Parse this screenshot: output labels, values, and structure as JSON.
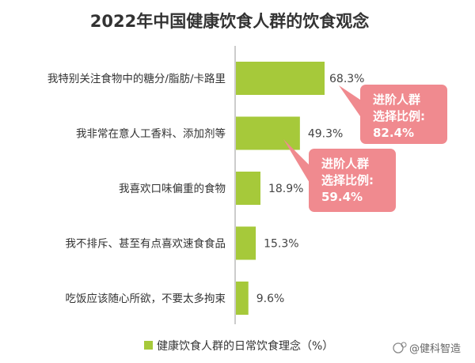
{
  "chart_data": {
    "type": "bar",
    "orientation": "horizontal",
    "title": "2022年中国健康饮食人群的饮食观念",
    "categories": [
      "我特别关注食物中的糖分/脂肪/卡路里",
      "我非常在意人工香料、添加剂等",
      "我喜欢口味偏重的食物",
      "我不排斥、甚至有点喜欢速食食品",
      "吃饭应该随心所欲，不要太多拘束"
    ],
    "series": [
      {
        "name": "健康饮食人群的日常饮食理念（%）",
        "values": [
          68.3,
          49.3,
          18.9,
          15.3,
          9.6
        ],
        "labels": [
          "68.3%",
          "49.3%",
          "18.9%",
          "15.3%",
          "9.6%"
        ]
      }
    ],
    "xlim": [
      0,
      100
    ],
    "grid": false,
    "legend_position": "bottom",
    "annotations": [
      {
        "category_index": 0,
        "lines": [
          "进阶人群",
          "选择比例:",
          "82.4%"
        ]
      },
      {
        "category_index": 1,
        "lines": [
          "进阶人群",
          "选择比例:",
          "59.4%"
        ]
      }
    ]
  },
  "colors": {
    "bar": "#a6c93a",
    "callout": "#f08a8f",
    "axis": "#999999"
  },
  "watermark": "@健科智造"
}
